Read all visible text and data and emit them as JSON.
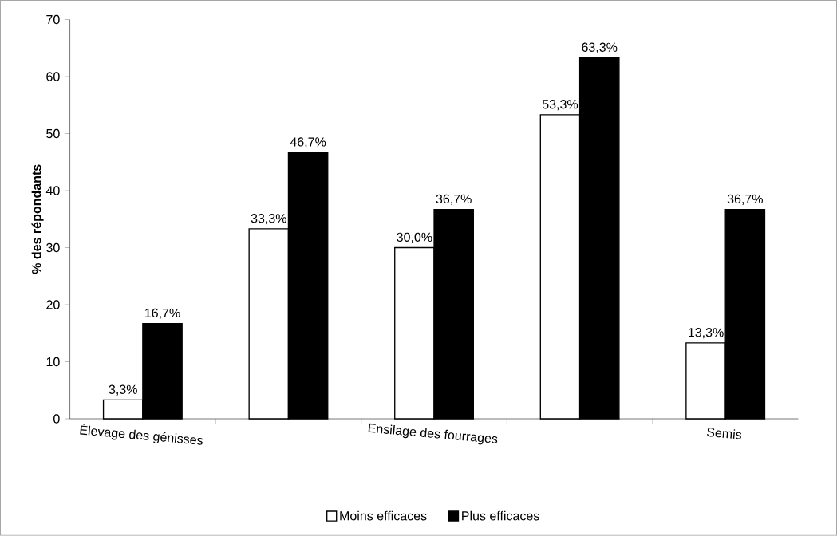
{
  "chart_data": {
    "type": "bar",
    "ylabel": "% des répondants",
    "categories": [
      "Élevage des génisses",
      null,
      "Ensilage des fourrages",
      null,
      "Semis"
    ],
    "series": [
      {
        "name": "Moins efficaces",
        "color": "#ffffff",
        "values": [
          3.3,
          33.3,
          30.0,
          53.3,
          13.3
        ],
        "value_labels": [
          "3,3%",
          "33,3%",
          "30,0%",
          "53,3%",
          "13,3%"
        ]
      },
      {
        "name": "Plus efficaces",
        "color": "#000000",
        "values": [
          16.7,
          46.7,
          36.7,
          63.3,
          36.7
        ],
        "value_labels": [
          "16,7%",
          "46,7%",
          "36,7%",
          "63,3%",
          "36,7%"
        ]
      }
    ],
    "ylim": [
      0,
      70
    ],
    "yticks": [
      0,
      10,
      20,
      30,
      40,
      50,
      60,
      70
    ],
    "grid": false,
    "legend": "bottom"
  }
}
